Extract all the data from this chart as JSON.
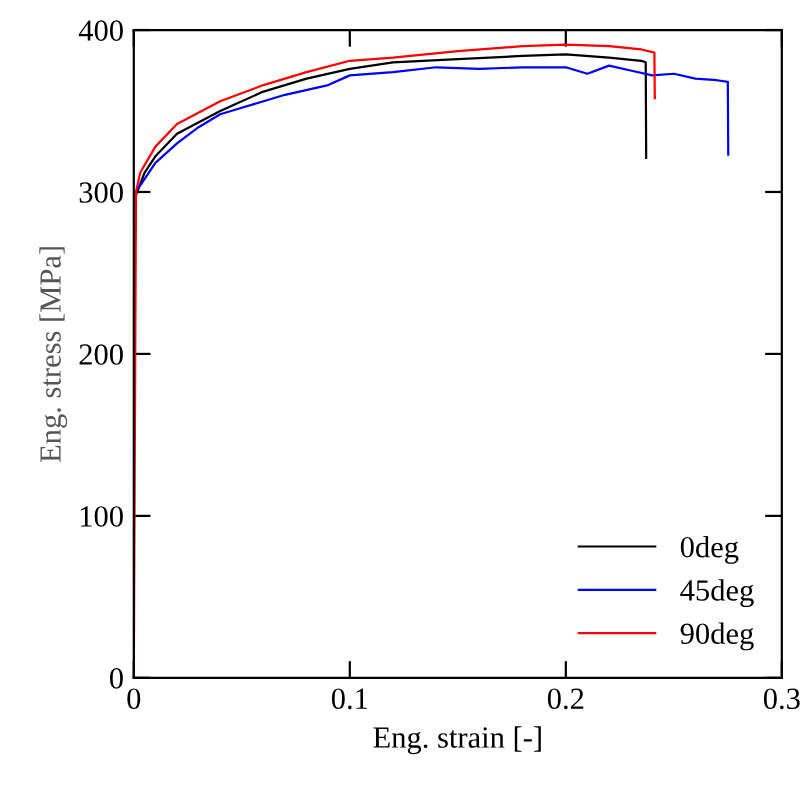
{
  "chart_data": {
    "type": "line",
    "xlabel": "Eng. strain [-]",
    "ylabel": "Eng. stress [MPa]",
    "xlim": [
      0,
      0.3
    ],
    "xticks": [
      0,
      0.1,
      0.2,
      0.3
    ],
    "ylim": [
      0,
      400
    ],
    "yticks": [
      0,
      100,
      200,
      300,
      400
    ],
    "grid": false,
    "legend": "bottom right",
    "marker": "none",
    "line_style": "solid",
    "series": [
      {
        "name": "0deg",
        "color": "#000000",
        "x": [
          0,
          0.001,
          0.005,
          0.01,
          0.02,
          0.04,
          0.06,
          0.08,
          0.1,
          0.12,
          0.15,
          0.18,
          0.2,
          0.22,
          0.235,
          0.237,
          0.2372
        ],
        "values": [
          228,
          298,
          312,
          322,
          336,
          350,
          362,
          370,
          376,
          380,
          382,
          384,
          385,
          383,
          381,
          380,
          321
        ]
      },
      {
        "name": "45deg",
        "color": "#0000ff",
        "x": [
          0.002,
          0.01,
          0.02,
          0.03,
          0.04,
          0.05,
          0.07,
          0.09,
          0.1,
          0.12,
          0.14,
          0.16,
          0.18,
          0.2,
          0.21,
          0.22,
          0.23,
          0.24,
          0.25,
          0.26,
          0.27,
          0.275,
          0.2752
        ],
        "values": [
          302,
          318,
          330,
          340,
          348,
          352,
          360,
          366,
          372,
          374,
          377,
          376,
          377,
          377,
          373,
          378,
          375,
          372,
          373,
          370,
          369,
          368,
          323
        ]
      },
      {
        "name": "90deg",
        "color": "#ff0000",
        "x": [
          0,
          0.001,
          0.003,
          0.01,
          0.02,
          0.04,
          0.06,
          0.08,
          0.1,
          0.12,
          0.15,
          0.18,
          0.2,
          0.22,
          0.235,
          0.241,
          0.2412
        ],
        "values": [
          0,
          300,
          312,
          328,
          342,
          356,
          366,
          374,
          381,
          383,
          387,
          390,
          391,
          390,
          388,
          386,
          358
        ]
      }
    ]
  }
}
